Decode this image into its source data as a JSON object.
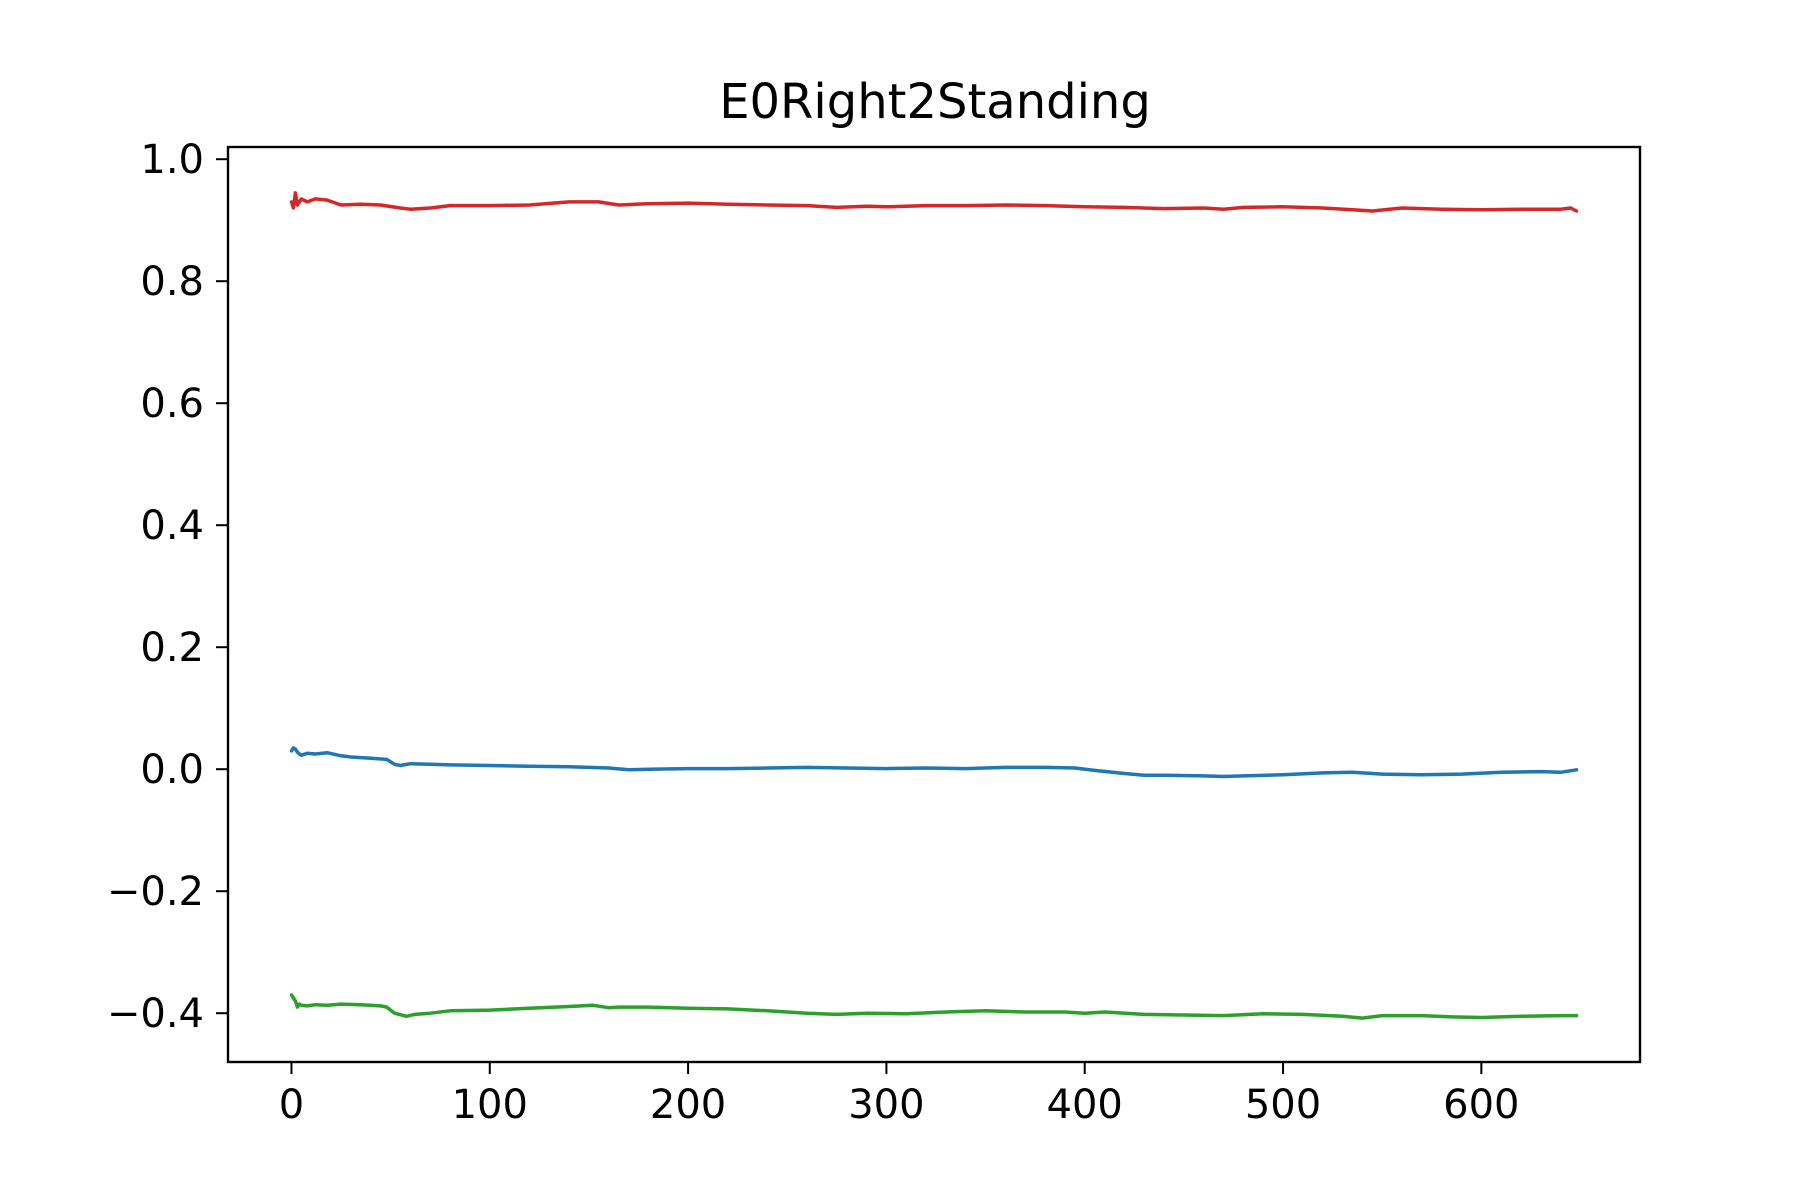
{
  "chart_data": {
    "type": "line",
    "title": "E0Right2Standing",
    "xlabel": "",
    "ylabel": "",
    "xlim": [
      -32,
      680
    ],
    "ylim": [
      -0.48,
      1.02
    ],
    "xticks": [
      0,
      100,
      200,
      300,
      400,
      500,
      600
    ],
    "xtick_labels": [
      "0",
      "100",
      "200",
      "300",
      "400",
      "500",
      "600"
    ],
    "yticks": [
      -0.4,
      -0.2,
      0.0,
      0.2,
      0.4,
      0.6,
      0.8,
      1.0
    ],
    "ytick_labels": [
      "−0.4",
      "−0.2",
      "0.0",
      "0.2",
      "0.4",
      "0.6",
      "0.8",
      "1.0"
    ],
    "grid": false,
    "series": [
      {
        "color": "#d62728",
        "x": [
          0,
          1,
          2,
          3,
          4,
          5,
          8,
          12,
          18,
          25,
          35,
          45,
          55,
          60,
          70,
          80,
          100,
          120,
          140,
          155,
          165,
          180,
          200,
          220,
          240,
          260,
          275,
          290,
          300,
          320,
          340,
          360,
          380,
          400,
          420,
          440,
          460,
          470,
          480,
          500,
          520,
          535,
          545,
          560,
          580,
          600,
          620,
          640,
          645,
          648
        ],
        "y": [
          0.93,
          0.92,
          0.945,
          0.925,
          0.93,
          0.935,
          0.93,
          0.935,
          0.933,
          0.925,
          0.926,
          0.925,
          0.92,
          0.918,
          0.92,
          0.924,
          0.924,
          0.925,
          0.93,
          0.93,
          0.925,
          0.927,
          0.928,
          0.926,
          0.925,
          0.924,
          0.921,
          0.923,
          0.922,
          0.924,
          0.924,
          0.925,
          0.924,
          0.922,
          0.921,
          0.919,
          0.92,
          0.918,
          0.921,
          0.922,
          0.92,
          0.917,
          0.915,
          0.92,
          0.918,
          0.917,
          0.918,
          0.918,
          0.92,
          0.915
        ]
      },
      {
        "color": "#1f77b4",
        "x": [
          0,
          1,
          2,
          3,
          4,
          5,
          8,
          12,
          18,
          25,
          30,
          40,
          48,
          52,
          55,
          60,
          70,
          80,
          100,
          120,
          140,
          160,
          170,
          180,
          200,
          220,
          240,
          260,
          280,
          300,
          320,
          340,
          360,
          380,
          395,
          405,
          420,
          430,
          440,
          460,
          470,
          480,
          500,
          520,
          535,
          550,
          570,
          590,
          610,
          630,
          640,
          648
        ],
        "y": [
          0.03,
          0.035,
          0.033,
          0.028,
          0.025,
          0.023,
          0.026,
          0.025,
          0.027,
          0.022,
          0.02,
          0.018,
          0.016,
          0.008,
          0.006,
          0.009,
          0.008,
          0.007,
          0.006,
          0.005,
          0.004,
          0.002,
          -0.001,
          0.0,
          0.001,
          0.001,
          0.002,
          0.003,
          0.002,
          0.001,
          0.002,
          0.001,
          0.003,
          0.003,
          0.002,
          -0.002,
          -0.007,
          -0.01,
          -0.01,
          -0.011,
          -0.012,
          -0.011,
          -0.009,
          -0.006,
          -0.005,
          -0.008,
          -0.009,
          -0.008,
          -0.005,
          -0.004,
          -0.005,
          -0.001
        ]
      },
      {
        "color": "#2ca02c",
        "x": [
          0,
          1,
          2,
          3,
          4,
          5,
          8,
          12,
          18,
          25,
          35,
          45,
          48,
          52,
          58,
          62,
          70,
          80,
          100,
          120,
          140,
          152,
          160,
          165,
          180,
          200,
          220,
          240,
          260,
          275,
          290,
          310,
          330,
          350,
          370,
          390,
          400,
          410,
          430,
          450,
          470,
          490,
          510,
          530,
          540,
          550,
          570,
          585,
          600,
          620,
          640,
          648
        ],
        "y": [
          -0.37,
          -0.375,
          -0.38,
          -0.39,
          -0.385,
          -0.387,
          -0.388,
          -0.386,
          -0.387,
          -0.385,
          -0.386,
          -0.388,
          -0.39,
          -0.4,
          -0.405,
          -0.402,
          -0.4,
          -0.396,
          -0.395,
          -0.392,
          -0.389,
          -0.387,
          -0.391,
          -0.39,
          -0.39,
          -0.392,
          -0.393,
          -0.396,
          -0.4,
          -0.402,
          -0.4,
          -0.401,
          -0.398,
          -0.396,
          -0.398,
          -0.398,
          -0.4,
          -0.398,
          -0.402,
          -0.403,
          -0.404,
          -0.401,
          -0.402,
          -0.405,
          -0.408,
          -0.404,
          -0.404,
          -0.406,
          -0.407,
          -0.405,
          -0.404,
          -0.404
        ]
      }
    ]
  }
}
